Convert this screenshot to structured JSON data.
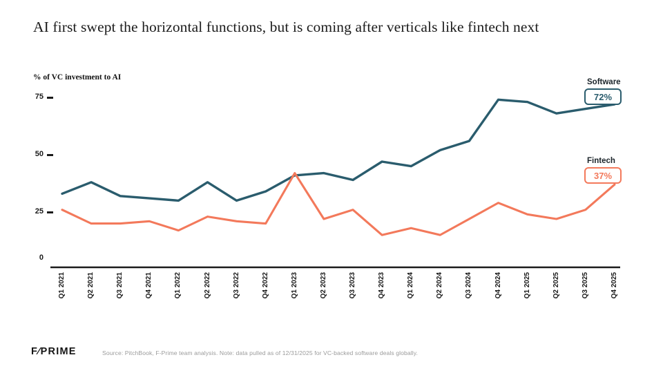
{
  "header": {
    "title": "AI first swept the horizontal functions, but is coming after verticals like fintech next"
  },
  "chart_data": {
    "type": "line",
    "title": "% of VC investment to AI",
    "ylabel": "% of VC investment to AI",
    "xlabel": "",
    "categories": [
      "Q1 2021",
      "Q2 2021",
      "Q3 2021",
      "Q4 2021",
      "Q1 2022",
      "Q2 2022",
      "Q3 2022",
      "Q4 2022",
      "Q1 2023",
      "Q2 2023",
      "Q3 2023",
      "Q4 2023",
      "Q1 2024",
      "Q2 2024",
      "Q3 2024",
      "Q4 2024",
      "Q1 2025",
      "Q2 2025",
      "Q3 2025",
      "Q4 2025"
    ],
    "series": [
      {
        "name": "Software",
        "color": "#2A5C6D",
        "latest_value_label": "72%",
        "values": [
          33,
          38,
          32,
          31,
          30,
          38,
          30,
          34,
          41,
          42,
          39,
          47,
          45,
          52,
          56,
          74,
          73,
          68,
          70,
          72
        ]
      },
      {
        "name": "Fintech",
        "color": "#F3795B",
        "latest_value_label": "37%",
        "values": [
          26,
          20,
          20,
          21,
          17,
          23,
          21,
          20,
          42,
          22,
          26,
          15,
          18,
          15,
          22,
          29,
          24,
          22,
          26,
          37
        ]
      }
    ],
    "yticks": [
      75,
      50,
      25,
      0
    ],
    "ylim": [
      0,
      80
    ],
    "grid": false,
    "legend_position": "right-end-callouts"
  },
  "footer": {
    "logo_text": "F⁄PRIME",
    "source_note": "Source: PitchBook, F-Prime team analysis. Note: data pulled as of 12/31/2025 for VC-backed software deals globally."
  }
}
